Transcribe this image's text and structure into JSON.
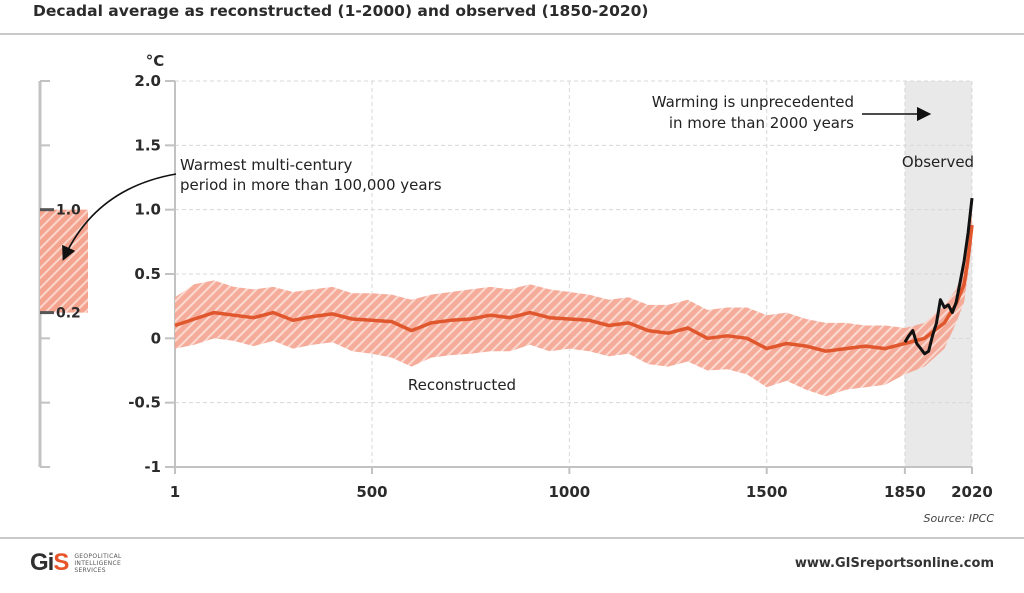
{
  "header": {
    "subtitle": "Decadal average as reconstructed (1-2000) and observed  (1850-2020)"
  },
  "footer": {
    "source": "Source: IPCC",
    "website": "www.GISreportsonline.com"
  },
  "logo": {
    "mark": "GIS",
    "lines": [
      "GEOPOLITICAL",
      "INTELLIGENCE",
      "SERVICES"
    ]
  },
  "colors": {
    "reconstructed": "#e0572d",
    "observed": "#111111",
    "band": "#f6b2a2",
    "observed_shade": "#e9e9e9"
  },
  "chart_data": {
    "type": "line",
    "ylabel": "°C",
    "ylim": [
      -1,
      2
    ],
    "yticks": [
      2.0,
      1.5,
      1.0,
      0.5,
      0,
      -0.5,
      -1
    ],
    "ytick_labels": [
      "2.0",
      "1.5",
      "1.0",
      "0.5",
      "0",
      "-0.5",
      "-1"
    ],
    "xticks": [
      1,
      500,
      1000,
      1500,
      1850,
      2020
    ],
    "xtick_labels": [
      "1",
      "500",
      "1000",
      "1500",
      "1850",
      "2020"
    ],
    "grid": true,
    "series": [
      {
        "key": "reconstructed",
        "x": [
          1,
          50,
          100,
          150,
          200,
          250,
          300,
          350,
          400,
          450,
          500,
          550,
          600,
          650,
          700,
          750,
          800,
          850,
          900,
          950,
          1000,
          1050,
          1100,
          1150,
          1200,
          1250,
          1300,
          1350,
          1400,
          1450,
          1500,
          1550,
          1600,
          1650,
          1700,
          1750,
          1800,
          1850,
          1900,
          1950,
          1980,
          2000,
          2010,
          2020
        ],
        "y": [
          0.1,
          0.15,
          0.2,
          0.18,
          0.16,
          0.2,
          0.14,
          0.17,
          0.19,
          0.15,
          0.14,
          0.13,
          0.06,
          0.12,
          0.14,
          0.15,
          0.18,
          0.16,
          0.2,
          0.16,
          0.15,
          0.14,
          0.1,
          0.12,
          0.06,
          0.04,
          0.08,
          0.0,
          0.02,
          0.0,
          -0.08,
          -0.04,
          -0.06,
          -0.1,
          -0.08,
          -0.06,
          -0.08,
          -0.04,
          0.0,
          0.12,
          0.27,
          0.42,
          0.62,
          0.88
        ],
        "lower": [
          -0.08,
          -0.05,
          0.0,
          -0.02,
          -0.06,
          -0.02,
          -0.08,
          -0.05,
          -0.03,
          -0.1,
          -0.12,
          -0.15,
          -0.22,
          -0.15,
          -0.13,
          -0.12,
          -0.1,
          -0.1,
          -0.05,
          -0.1,
          -0.08,
          -0.1,
          -0.14,
          -0.12,
          -0.2,
          -0.22,
          -0.18,
          -0.25,
          -0.24,
          -0.28,
          -0.38,
          -0.33,
          -0.4,
          -0.45,
          -0.4,
          -0.38,
          -0.36,
          -0.28,
          -0.22,
          -0.08,
          0.12,
          0.28,
          0.5,
          0.75
        ],
        "upper": [
          0.32,
          0.42,
          0.45,
          0.4,
          0.38,
          0.4,
          0.36,
          0.38,
          0.4,
          0.35,
          0.35,
          0.34,
          0.3,
          0.34,
          0.36,
          0.38,
          0.4,
          0.38,
          0.42,
          0.38,
          0.36,
          0.34,
          0.3,
          0.32,
          0.26,
          0.26,
          0.3,
          0.22,
          0.24,
          0.24,
          0.18,
          0.2,
          0.15,
          0.12,
          0.12,
          0.1,
          0.1,
          0.08,
          0.12,
          0.26,
          0.38,
          0.55,
          0.74,
          1.0
        ]
      },
      {
        "key": "observed",
        "x": [
          1850,
          1860,
          1870,
          1880,
          1890,
          1900,
          1910,
          1920,
          1930,
          1940,
          1950,
          1960,
          1970,
          1980,
          1990,
          2000,
          2010,
          2020
        ],
        "y": [
          -0.03,
          0.02,
          0.06,
          -0.04,
          -0.08,
          -0.12,
          -0.1,
          0.02,
          0.12,
          0.3,
          0.24,
          0.26,
          0.2,
          0.28,
          0.44,
          0.6,
          0.82,
          1.09
        ]
      }
    ],
    "inset_range": {
      "bottom": 0.2,
      "top": 1.0,
      "bottom_label": "0.2",
      "top_label": "1.0"
    },
    "annotations": {
      "warmest": [
        "Warmest multi-century",
        "period in more than 100,000 years"
      ],
      "warming": [
        "Warming is unprecedented",
        "in more than 2000 years"
      ],
      "observed": "Observed",
      "reconstructed": "Reconstructed"
    }
  }
}
